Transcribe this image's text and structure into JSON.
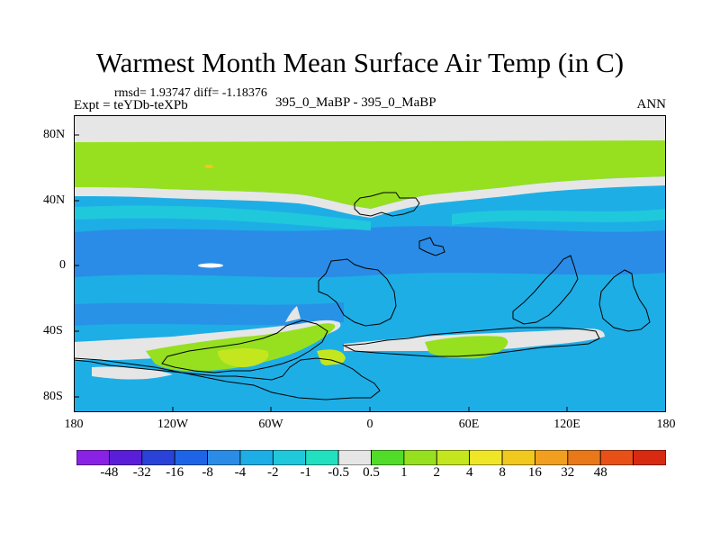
{
  "title": "Warmest Month Mean Surface Air Temp (in C)",
  "stats": "rmsd= 1.93747 diff= -1.18376",
  "experiment": "Expt = teYDb-teXPb",
  "runs": "395_0_MaBP - 395_0_MaBP",
  "season": "ANN",
  "lat_labels": [
    "80N",
    "40N",
    "0",
    "40S",
    "80S"
  ],
  "lon_labels": [
    "180",
    "120W",
    "60W",
    "0",
    "60E",
    "120E",
    "180"
  ],
  "colorbar": {
    "colors": [
      "#8a22e6",
      "#5a1ed8",
      "#2a42d8",
      "#1e64e6",
      "#2a8ce6",
      "#1eaee6",
      "#20c8dc",
      "#20e0c0",
      "#e6e6e6",
      "#50dc28",
      "#96e020",
      "#c4e61e",
      "#f0e628",
      "#f0c81e",
      "#f0a01e",
      "#e87818",
      "#e85018",
      "#d82a10"
    ],
    "labels": [
      "-48",
      "-32",
      "-16",
      "-8",
      "-4",
      "-2",
      "-1",
      "-0.5",
      "0.5",
      "1",
      "2",
      "4",
      "8",
      "16",
      "32",
      "48"
    ]
  }
}
